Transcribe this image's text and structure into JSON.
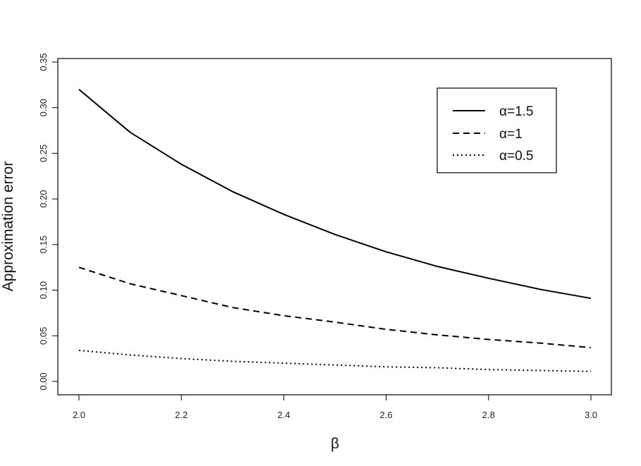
{
  "chart_data": {
    "type": "line",
    "title": "",
    "xlabel": "β",
    "ylabel": "Approximation error",
    "xlim": [
      2.0,
      3.0
    ],
    "ylim": [
      0.0,
      0.35
    ],
    "x_ticks": [
      "2.0",
      "2.2",
      "2.4",
      "2.6",
      "2.8",
      "3.0"
    ],
    "y_ticks": [
      "0.00",
      "0.05",
      "0.10",
      "0.15",
      "0.20",
      "0.25",
      "0.30",
      "0.35"
    ],
    "grid": false,
    "legend_position": "top-right",
    "x": [
      2.0,
      2.1,
      2.2,
      2.3,
      2.4,
      2.5,
      2.6,
      2.7,
      2.8,
      2.9,
      3.0
    ],
    "series": [
      {
        "name": "α=1.5",
        "style": "solid",
        "values": [
          0.32,
          0.273,
          0.238,
          0.208,
          0.183,
          0.161,
          0.142,
          0.126,
          0.113,
          0.101,
          0.091
        ]
      },
      {
        "name": "α=1",
        "style": "dashed",
        "values": [
          0.125,
          0.107,
          0.094,
          0.081,
          0.072,
          0.065,
          0.057,
          0.051,
          0.046,
          0.042,
          0.037
        ]
      },
      {
        "name": "α=0.5",
        "style": "dotted",
        "values": [
          0.034,
          0.029,
          0.025,
          0.022,
          0.02,
          0.018,
          0.016,
          0.015,
          0.013,
          0.012,
          0.011
        ]
      }
    ]
  }
}
